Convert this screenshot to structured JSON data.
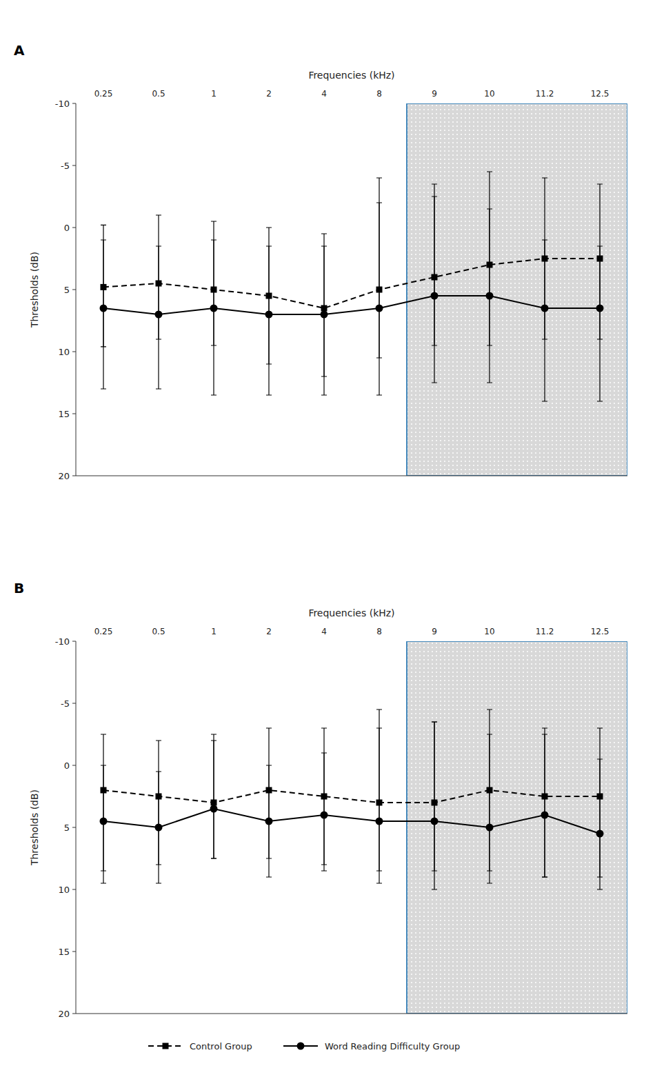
{
  "chart_data": [
    {
      "type": "line",
      "title": "A",
      "x_label": "Frequencies (kHz)",
      "y_label": "Thresholds (dB)",
      "categories": [
        "0.25",
        "0.5",
        "1",
        "2",
        "4",
        "8",
        "9",
        "10",
        "11.2",
        "12.5"
      ],
      "ylim": [
        20,
        -10
      ],
      "yticks": [
        -10,
        -5,
        0,
        5,
        10,
        15,
        20
      ],
      "grid": false,
      "legend": "bottom",
      "shade": {
        "from": "9",
        "to": "12.5",
        "color": "#d8d8d8",
        "edge_color": "#4488bb"
      },
      "series": [
        {
          "name": "Control Group",
          "color": "#000000",
          "line_style": "dashed",
          "marker": "square",
          "values": [
            4.8,
            4.5,
            5.0,
            5.5,
            6.5,
            5.0,
            4.0,
            3.0,
            2.5,
            2.5
          ],
          "error_plus": [
            4.8,
            4.5,
            4.5,
            5.5,
            5.5,
            5.5,
            5.5,
            6.5,
            6.5,
            6.5
          ],
          "error_minus": [
            5.0,
            5.5,
            5.5,
            5.5,
            6.0,
            7.0,
            7.5,
            7.5,
            6.5,
            6.0
          ]
        },
        {
          "name": "Word Reading Difficulty Group",
          "color": "#000000",
          "line_style": "solid",
          "marker": "circle",
          "values": [
            6.5,
            7.0,
            6.5,
            7.0,
            7.0,
            6.5,
            5.5,
            5.5,
            6.5,
            6.5
          ],
          "error_plus": [
            6.5,
            6.0,
            7.0,
            6.5,
            6.5,
            7.0,
            7.0,
            7.0,
            7.5,
            7.5
          ],
          "error_minus": [
            5.5,
            5.5,
            5.5,
            5.5,
            5.5,
            10.5,
            8.0,
            7.0,
            5.5,
            5.0
          ]
        }
      ]
    },
    {
      "type": "line",
      "title": "B",
      "x_label": "Frequencies (kHz)",
      "y_label": "Thresholds (dB)",
      "categories": [
        "0.25",
        "0.5",
        "1",
        "2",
        "4",
        "8",
        "9",
        "10",
        "11.2",
        "12.5"
      ],
      "ylim": [
        20,
        -10
      ],
      "yticks": [
        -10,
        -5,
        0,
        5,
        10,
        15,
        20
      ],
      "grid": false,
      "shade": {
        "from": "9",
        "to": "12.5",
        "color": "#d8d8d8",
        "edge_color": "#4488bb"
      },
      "series": [
        {
          "name": "Control Group",
          "color": "#000000",
          "line_style": "dashed",
          "marker": "square",
          "values": [
            2.0,
            2.5,
            3.0,
            2.0,
            2.5,
            3.0,
            3.0,
            2.0,
            2.5,
            2.5
          ],
          "error_plus": [
            6.5,
            5.5,
            4.5,
            5.5,
            5.5,
            5.5,
            5.5,
            6.5,
            6.5,
            6.5
          ],
          "error_minus": [
            4.5,
            4.5,
            5.5,
            5.0,
            5.5,
            7.5,
            6.5,
            6.5,
            5.5,
            5.5
          ]
        },
        {
          "name": "Word Reading Difficulty Group",
          "color": "#000000",
          "line_style": "solid",
          "marker": "circle",
          "values": [
            4.5,
            5.0,
            3.5,
            4.5,
            4.0,
            4.5,
            4.5,
            5.0,
            4.0,
            5.5
          ],
          "error_plus": [
            5.0,
            4.5,
            4.0,
            4.5,
            4.5,
            5.0,
            5.5,
            4.5,
            5.0,
            4.5
          ],
          "error_minus": [
            4.5,
            4.5,
            5.5,
            4.5,
            5.0,
            7.5,
            8.0,
            7.5,
            6.5,
            6.0
          ]
        }
      ]
    }
  ]
}
